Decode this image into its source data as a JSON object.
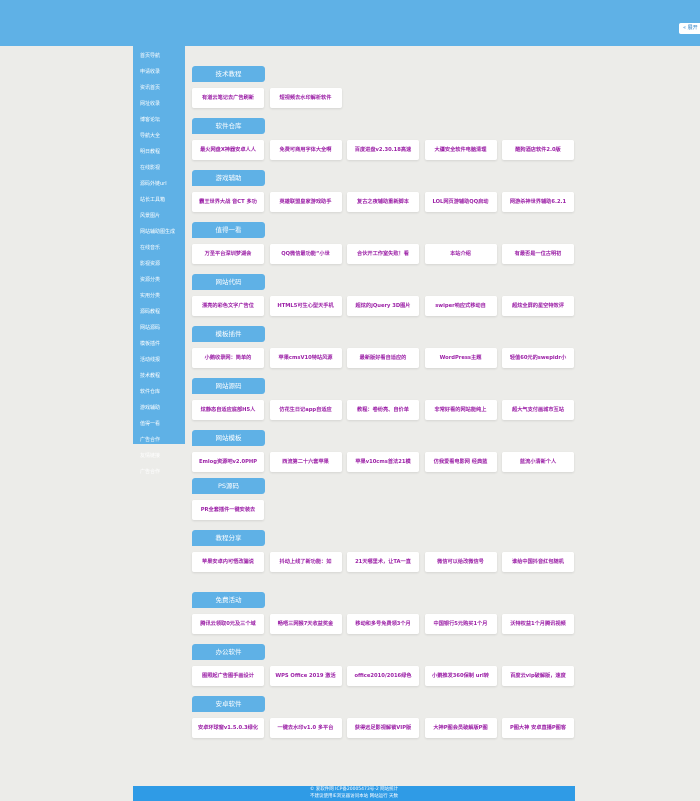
{
  "header": {
    "button": "« 展开"
  },
  "sidebar": {
    "items": [
      "首页导航",
      "申请收录",
      "资讯首页",
      "网址收录",
      "博客论坛",
      "导航大全",
      "明日教程",
      "在线影视",
      "源码外链url",
      "站长工具箱",
      "风景图片",
      "网站辅助图生成",
      "在线音乐",
      "影视资源",
      "资源分类",
      "实用分类",
      "源码教程",
      "网站源码",
      "模板插件",
      "活动线报",
      "技术教程",
      "软件仓库",
      "游戏辅助",
      "值得一看",
      "广告合作",
      "友情链接",
      "广告合作"
    ]
  },
  "sections": [
    {
      "title": "技术教程",
      "links": [
        "有道云笔记去广告刷新",
        "短视频去水印解析软件"
      ]
    },
    {
      "title": "软件仓库",
      "links": [
        "最火网盘X神器安卓人人",
        "免费可商用字体大全啊",
        "百度进盘v2.30.18高速",
        "大疆安全软件电脑清理",
        "酷狗酒店软件2.0版"
      ]
    },
    {
      "title": "游戏辅助",
      "links": [
        "霸王世界大战 音CT 多功",
        "英雄联盟皇家游戏助手",
        "复古之夜辅助重新脚本",
        "LOL网页游辅助QQ启动",
        "网游杀神世界辅助6.2.1"
      ]
    },
    {
      "title": "值得一看",
      "links": [
        "万圣平台深圳梦湖会",
        "QQ微信最功能“小世",
        "合伙开工作室失败！看",
        "本站介绍",
        "有最否是一位古明初"
      ]
    },
    {
      "title": "网站代码",
      "links": [
        "漂亮的彩色文字广告位",
        "HTML5可生心型天手机",
        "超炫的jQuery 3D图片",
        "swiper响应式移动自",
        "超炫全屏的星空特效评"
      ]
    },
    {
      "title": "模板插件",
      "links": [
        "小鹅收录网：简单的",
        "苹果cmsV10特站风源",
        "最新版好看自适应的",
        "WordPress主题",
        "轻值60元的swepidr小"
      ]
    },
    {
      "title": "网站源码",
      "links": [
        "炫静态自适应底部H5人",
        "仿花生日记app自适应",
        "教程：卷纷亮、自价单",
        "非常好看的网站能纯上",
        "超大气支付画城市互站"
      ]
    },
    {
      "title": "网站模板",
      "links": [
        "Emlog资源吧v2.0PHP",
        "西流第二十六套苹果",
        "苹果v10cms首法21模",
        "仿我爱看电影网 经典蓝",
        "蓝流小清新个人"
      ]
    },
    {
      "title": "PS源码",
      "links": [
        "PR全套插件一键安装去"
      ]
    },
    {
      "title": "教程分享",
      "links": [
        "苹果安卓内可悟改骗说",
        "抖动上线了新功能：如",
        "21天哪里术，让TA一直",
        "微信可以给改微信号",
        "谁给中国抖音红包随机"
      ]
    },
    {
      "title": "免费活动",
      "links": [
        "腾讯云领取0元及三个域",
        "畅唔三网猴7天收益奖金",
        "移动和多号免费领3个月",
        "中国银行5元购买1个月",
        "沃特权益1个月腾讯视频"
      ]
    },
    {
      "title": "办公软件",
      "links": [
        "图照起广告图手画设计",
        "WPS Office 2019 激活",
        "office2010/2016绿色",
        "小鹅推发360保制 url转",
        "百度云vip破解版，速度"
      ]
    },
    {
      "title": "安卓软件",
      "links": [
        "安卓环球窗v1.5.0.3绿化",
        "一键去水印v1.0 多平台",
        "获得远足影视解锁VIP版",
        "大神P图会员破解版P图",
        "P图大神 安卓直播P图客"
      ]
    }
  ],
  "footer": {
    "lines": [
      "© 爱软件网 ICP备20005473号-2 网站统计",
      "不建议使用IE浏览器访问本站 网站运行 天数"
    ]
  }
}
